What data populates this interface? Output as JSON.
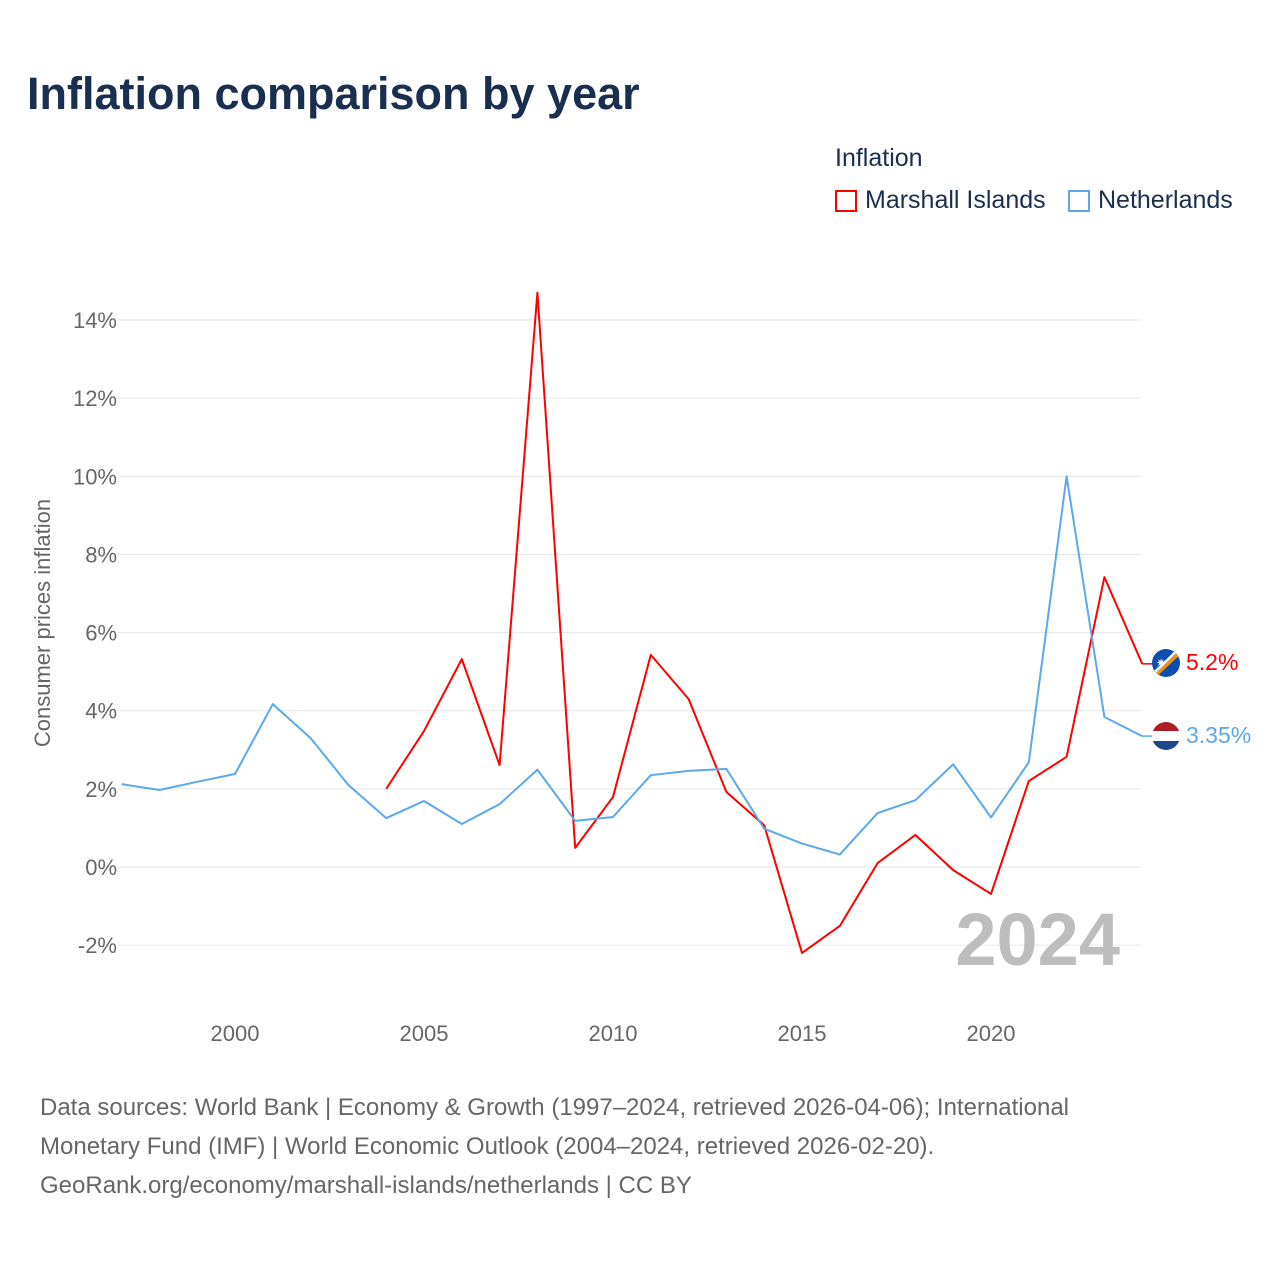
{
  "title": "Inflation comparison by year",
  "legend": {
    "title": "Inflation",
    "items": [
      {
        "name": "Marshall Islands",
        "color": "#ff0000"
      },
      {
        "name": "Netherlands",
        "color": "#5ba8ec"
      }
    ]
  },
  "watermark_year": "2024",
  "end_labels": [
    "5.2%",
    "3.35%"
  ],
  "source": {
    "line1": "Data sources: World Bank | Economy & Growth (1997–2024, retrieved 2026-04-06); International",
    "line2": "Monetary Fund (IMF) | World Economic Outlook (2004–2024, retrieved 2026-02-20).",
    "line3": "GeoRank.org/economy/marshall-islands/netherlands | CC BY"
  },
  "chart_data": {
    "type": "line",
    "title": "Inflation comparison by year",
    "xlabel": "",
    "ylabel": "Consumer prices inflation",
    "xlim": [
      1997,
      2024
    ],
    "ylim": [
      -3.2,
      15.3
    ],
    "xticks": [
      2000,
      2005,
      2010,
      2015,
      2020
    ],
    "yticks": [
      -2,
      0,
      2,
      4,
      6,
      8,
      10,
      12,
      14
    ],
    "ytick_labels": [
      "-2%",
      "0%",
      "2%",
      "4%",
      "6%",
      "8%",
      "10%",
      "12%",
      "14%"
    ],
    "grid": true,
    "legend_position": "top-right",
    "series": [
      {
        "name": "Marshall Islands",
        "color": "#ff0000",
        "x": [
          2004,
          2005,
          2006,
          2007,
          2008,
          2009,
          2010,
          2011,
          2012,
          2013,
          2014,
          2015,
          2016,
          2017,
          2018,
          2019,
          2020,
          2021,
          2022,
          2023,
          2024
        ],
        "values": [
          2.0,
          3.48,
          5.32,
          2.61,
          14.7,
          0.49,
          1.79,
          5.43,
          4.3,
          1.92,
          1.07,
          -2.2,
          -1.51,
          0.1,
          0.82,
          -0.08,
          -0.69,
          2.2,
          2.82,
          7.42,
          5.2
        ]
      },
      {
        "name": "Netherlands",
        "color": "#5ba8ec",
        "x": [
          1997,
          1998,
          1999,
          2000,
          2001,
          2002,
          2003,
          2004,
          2005,
          2006,
          2007,
          2008,
          2009,
          2010,
          2011,
          2012,
          2013,
          2014,
          2015,
          2016,
          2017,
          2018,
          2019,
          2020,
          2021,
          2022,
          2023,
          2024
        ],
        "values": [
          2.12,
          1.97,
          2.18,
          2.38,
          4.17,
          3.3,
          2.1,
          1.25,
          1.69,
          1.1,
          1.61,
          2.49,
          1.18,
          1.28,
          2.35,
          2.46,
          2.51,
          0.98,
          0.6,
          0.32,
          1.38,
          1.71,
          2.63,
          1.27,
          2.68,
          10.0,
          3.84,
          3.35
        ]
      }
    ]
  }
}
